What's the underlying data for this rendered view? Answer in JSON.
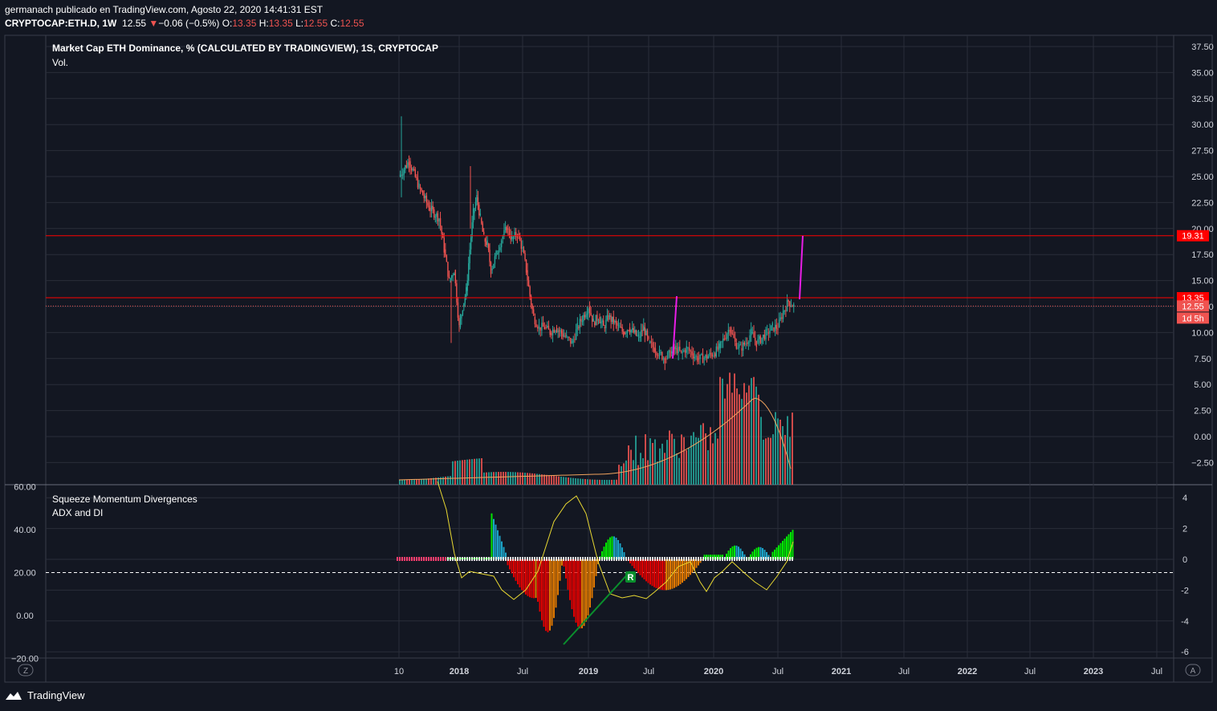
{
  "header": {
    "publisher_line": "germanach publicado en TradingView.com, Agosto 22, 2020 14:41:31 EST",
    "symbol": "CRYPTOCAP:ETH.D, 1W",
    "last": "12.55",
    "change_arrow": "▼",
    "change": "−0.06 (−0.5%)",
    "o_label": "O:",
    "o": "13.35",
    "h_label": "H:",
    "h": "13.35",
    "l_label": "L:",
    "l": "12.55",
    "c_label": "C:",
    "c": "12.55"
  },
  "main_legend": {
    "title": "Market Cap ETH Dominance, % (CALCULATED BY TRADINGVIEW), 1S, CRYPTOCAP",
    "volume": "Vol."
  },
  "lower_legend": {
    "indicator1": "Squeeze Momentum Divergences",
    "indicator2": "ADX and DI"
  },
  "footer": {
    "brand": "TradingView"
  },
  "buttons": {
    "left_scale": "Z",
    "right_scale": "A"
  },
  "colors": {
    "up": "#26a69a",
    "down": "#ef5350",
    "level": "#ff0000",
    "projection": "#e91ee6",
    "adx": "#e8d832",
    "mom_green": "#00e600",
    "mom_dkgreen": "#0a8f2d",
    "mom_red": "#e00000",
    "mom_orange": "#e07800",
    "teal": "#1ba3c7"
  },
  "chart_data": [
    {
      "type": "candlestick",
      "title": "Market Cap ETH Dominance, % (CALCULATED BY TRADINGVIEW), 1S, CRYPTOCAP",
      "y_ticks": [
        "37.50",
        "35.00",
        "32.50",
        "30.00",
        "27.50",
        "25.00",
        "22.50",
        "20.00",
        "17.50",
        "15.00",
        "12.50",
        "10.00",
        "7.50",
        "5.00",
        "2.50",
        "0.00",
        "−2.50"
      ],
      "x_ticks": [
        "10",
        "2018",
        "Jul",
        "2019",
        "Jul",
        "2020",
        "Jul",
        "2021",
        "Jul",
        "2022",
        "Jul",
        "2023",
        "Jul"
      ],
      "ylim": [
        -4.5,
        38.5
      ],
      "close_path": [
        [
          "2017-10",
          25.0
        ],
        [
          "2017-10",
          26.5
        ],
        [
          "2017-11",
          24.0
        ],
        [
          "2017-11",
          22.0
        ],
        [
          "2017-12",
          21.0
        ],
        [
          "2017-12",
          18.0
        ],
        [
          "2017-12",
          15.0
        ],
        [
          "2017-12",
          16.0
        ],
        [
          "2018-01",
          10.5
        ],
        [
          "2018-01",
          12.5
        ],
        [
          "2018-01",
          14.0
        ],
        [
          "2018-02",
          18.0
        ],
        [
          "2018-02",
          21.5
        ],
        [
          "2018-02",
          23.0
        ],
        [
          "2018-03",
          21.0
        ],
        [
          "2018-03",
          19.0
        ],
        [
          "2018-03",
          18.5
        ],
        [
          "2018-04",
          16.0
        ],
        [
          "2018-04",
          17.5
        ],
        [
          "2018-05",
          19.0
        ],
        [
          "2018-05",
          20.0
        ],
        [
          "2018-06",
          19.0
        ],
        [
          "2018-06",
          19.5
        ],
        [
          "2018-07",
          18.0
        ],
        [
          "2018-07",
          16.0
        ],
        [
          "2018-07",
          13.5
        ],
        [
          "2018-08",
          11.5
        ],
        [
          "2018-08",
          10.5
        ],
        [
          "2018-09",
          10.5
        ],
        [
          "2018-09",
          10.0
        ],
        [
          "2018-10",
          10.5
        ],
        [
          "2018-11",
          9.5
        ],
        [
          "2018-11",
          9.0
        ],
        [
          "2018-12",
          10.5
        ],
        [
          "2019-01",
          12.5
        ],
        [
          "2019-01",
          11.0
        ],
        [
          "2019-02",
          11.5
        ],
        [
          "2019-02",
          10.5
        ],
        [
          "2019-03",
          11.5
        ],
        [
          "2019-03",
          11.0
        ],
        [
          "2019-04",
          10.5
        ],
        [
          "2019-04",
          10.0
        ],
        [
          "2019-05",
          10.5
        ],
        [
          "2019-05",
          10.0
        ],
        [
          "2019-06",
          9.5
        ],
        [
          "2019-06",
          10.5
        ],
        [
          "2019-07",
          9.0
        ],
        [
          "2019-07",
          8.5
        ],
        [
          "2019-08",
          8.0
        ],
        [
          "2019-08",
          7.5
        ],
        [
          "2019-09",
          8.0
        ],
        [
          "2019-09",
          8.5
        ],
        [
          "2019-10",
          8.0
        ],
        [
          "2019-10",
          8.5
        ],
        [
          "2019-11",
          8.0
        ],
        [
          "2019-11",
          7.5
        ],
        [
          "2019-12",
          7.5
        ],
        [
          "2020-01",
          8.0
        ],
        [
          "2020-01",
          8.5
        ],
        [
          "2020-02",
          9.5
        ],
        [
          "2020-02",
          10.5
        ],
        [
          "2020-03",
          9.0
        ],
        [
          "2020-03",
          8.5
        ],
        [
          "2020-04",
          9.0
        ],
        [
          "2020-04",
          10.0
        ],
        [
          "2020-05",
          9.0
        ],
        [
          "2020-05",
          9.5
        ],
        [
          "2020-06",
          10.0
        ],
        [
          "2020-06",
          10.5
        ],
        [
          "2020-07",
          10.5
        ],
        [
          "2020-07",
          12.0
        ],
        [
          "2020-08",
          13.0
        ],
        [
          "2020-08",
          12.55
        ]
      ],
      "volume_ma_shape": "rising from near zero in 2018 to a peak in mid-2020, then declining",
      "horizontal_levels": [
        19.31,
        13.35
      ],
      "level_labels": [
        "19.31",
        "13.35"
      ],
      "last_price_label": "12.55",
      "countdown_label": "1d 5h"
    },
    {
      "type": "histogram",
      "series": [
        {
          "name": "Squeeze Momentum Divergences",
          "kind": "momentum histogram"
        },
        {
          "name": "ADX and DI",
          "kind": "line"
        }
      ],
      "left_ticks": [
        "60.00",
        "40.00",
        "20.00",
        "0.00",
        "−20.00"
      ],
      "right_ticks": [
        "4",
        "2",
        "0",
        "-2",
        "-4",
        "-6"
      ],
      "ylim": [
        -6.5,
        4.5
      ],
      "threshold_line": 20,
      "marker_label": "R"
    }
  ]
}
